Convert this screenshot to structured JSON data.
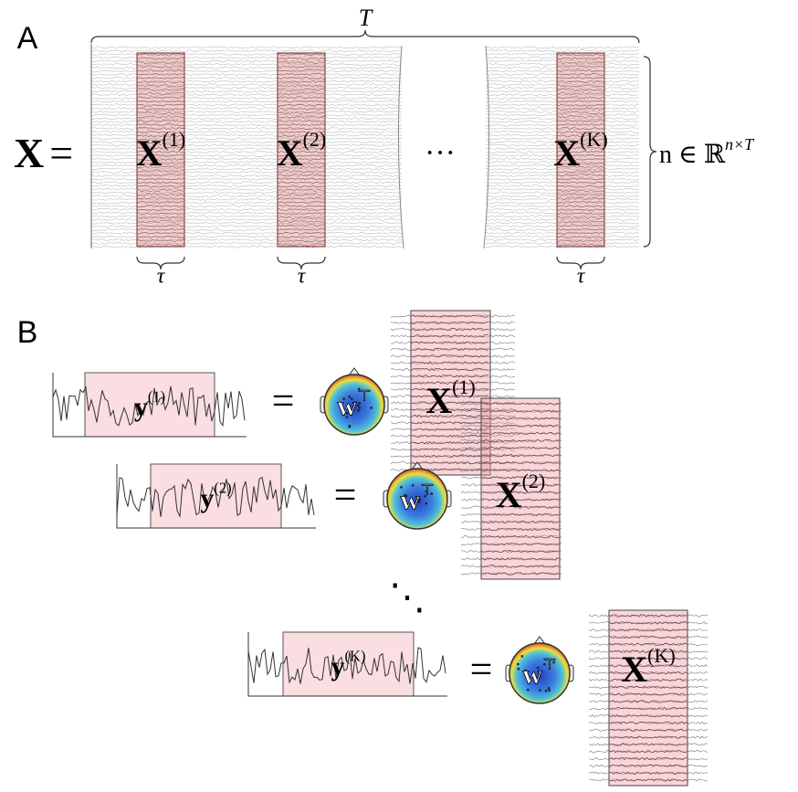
{
  "panel_a": {
    "label": "A",
    "span_label": "T",
    "lhs": "X",
    "equals": "=",
    "blocks": [
      {
        "base": "X",
        "sup": "(1)",
        "width_label": "τ"
      },
      {
        "base": "X",
        "sup": "(2)",
        "width_label": "τ"
      },
      {
        "base": "X",
        "sup": "(K)",
        "width_label": "τ"
      }
    ],
    "ellipsis": "···",
    "dim_label": {
      "text": "n ∈ ℝ",
      "sup": "n×T"
    }
  },
  "panel_b": {
    "label": "B",
    "rows": [
      {
        "lhs_base": "y",
        "lhs_sup": "(1)",
        "equals": "=",
        "weight_base": "w",
        "weight_sup": "⊤",
        "rhs_base": "X",
        "rhs_sup": "(1)"
      },
      {
        "lhs_base": "y",
        "lhs_sup": "(2)",
        "equals": "=",
        "weight_base": "w",
        "weight_sup": "⊤",
        "rhs_base": "X",
        "rhs_sup": "(2)"
      },
      {
        "lhs_base": "y",
        "lhs_sup": "(K)",
        "equals": "=",
        "weight_base": "w",
        "weight_sup": "⊤",
        "rhs_base": "X",
        "rhs_sup": "(K)"
      }
    ],
    "ellipsis": "⋱"
  }
}
